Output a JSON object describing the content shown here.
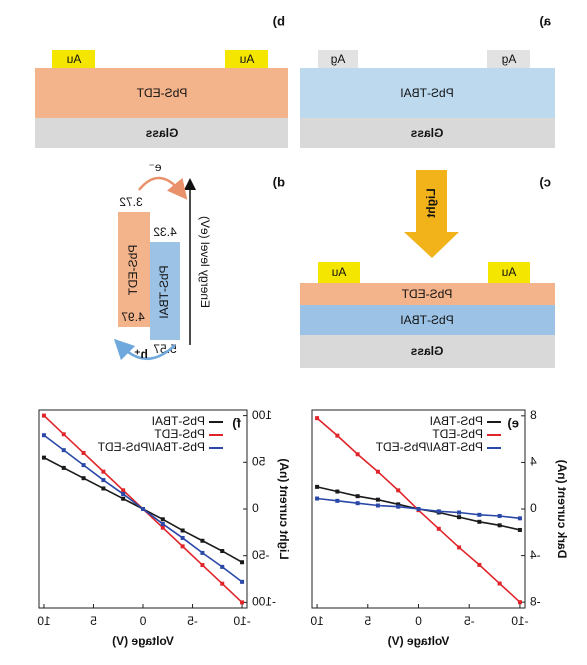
{
  "panels": {
    "a": {
      "label": "a)",
      "contact": "Ag",
      "layer": "PbS-TBAI",
      "substrate": "Glass"
    },
    "b": {
      "label": "b)",
      "contact": "Au",
      "layer": "PbS-EDT",
      "substrate": "Glass"
    },
    "c": {
      "label": "c)",
      "light": "Light",
      "contact": "Au",
      "top_layer": "PbS-EDT",
      "middle_layer": "PbS-TBAI",
      "substrate": "Glass"
    },
    "d": {
      "label": "d)",
      "axis_label": "Energy level (eV)",
      "edt": "PbS-EDT",
      "tbai": "PbS-TBAI",
      "levels": [
        "3.72",
        "4.32",
        "4.97",
        "5.57"
      ],
      "electron": "e⁻",
      "hole": "h⁺"
    }
  },
  "chart_data": [
    {
      "type": "line",
      "label": "e)",
      "xlabel": "Voltage (V)",
      "ylabel": "Dark current (nA)",
      "x": [
        -10,
        -8,
        -6,
        -4,
        -2,
        0,
        2,
        4,
        6,
        8,
        10
      ],
      "series": [
        {
          "name": "PbS-TBAI",
          "color": "#1a1a1a",
          "values": [
            -1.8,
            -1.4,
            -1.1,
            -0.7,
            -0.3,
            0,
            0.4,
            0.8,
            1.1,
            1.5,
            1.9
          ]
        },
        {
          "name": "PbS-EDT",
          "color": "#e0252a",
          "values": [
            -8,
            -6.4,
            -4.8,
            -3.3,
            -1.7,
            -0.1,
            1.6,
            3.2,
            4.7,
            6.3,
            7.8
          ]
        },
        {
          "name": "PbS-TBAI/PbS-EDT",
          "color": "#2a48a8",
          "values": [
            -0.8,
            -0.6,
            -0.5,
            -0.3,
            -0.2,
            0,
            0.2,
            0.3,
            0.5,
            0.7,
            0.9
          ]
        }
      ],
      "xlim": [
        -10.5,
        10.5
      ],
      "xticks": [
        -10,
        -5,
        0,
        5,
        10
      ],
      "ylim": [
        -8.5,
        8.5
      ],
      "yticks": [
        -8,
        -4,
        0,
        4,
        8
      ],
      "legend": "upper left"
    },
    {
      "type": "line",
      "label": "f)",
      "xlabel": "Voltage (V)",
      "ylabel": "Light current (nA)",
      "x": [
        -10,
        -8,
        -6,
        -4,
        -2,
        0,
        2,
        4,
        6,
        8,
        10
      ],
      "series": [
        {
          "name": "PbS-TBAI",
          "color": "#1a1a1a",
          "values": [
            -57,
            -45,
            -34,
            -23,
            -11,
            0,
            11,
            22,
            33,
            44,
            55
          ]
        },
        {
          "name": "PbS-EDT",
          "color": "#e0252a",
          "values": [
            -100,
            -80,
            -60,
            -40,
            -20,
            0,
            20,
            40,
            60,
            80,
            100
          ]
        },
        {
          "name": "PbS-TBAI/PbS-EDT",
          "color": "#2a48a8",
          "values": [
            -78,
            -62,
            -47,
            -31,
            -16,
            0,
            16,
            31,
            47,
            63,
            79
          ]
        }
      ],
      "xlim": [
        -10.5,
        10.5
      ],
      "xticks": [
        -10,
        -5,
        0,
        5,
        10
      ],
      "ylim": [
        -106,
        106
      ],
      "yticks": [
        -100,
        -50,
        0,
        50,
        100
      ],
      "legend": "upper left"
    }
  ]
}
